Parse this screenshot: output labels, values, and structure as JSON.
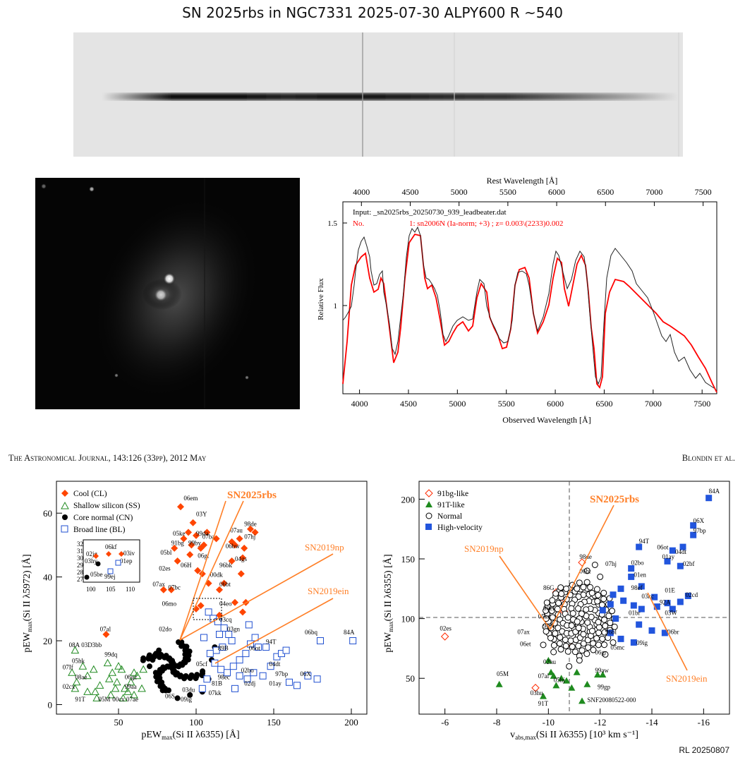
{
  "title": "SN 2025rbs in NGC7331  2025-07-30   ALPY600 R ~540",
  "journal_header": "The Astronomical Journal, 143:126 (33pp), 2012 May",
  "authors_header": "Blondin et al.",
  "credit": "RL 20250807",
  "spectrum_fit": {
    "top_axis_label": "Rest Wavelength [Å]",
    "bottom_axis_label": "Observed Wavelength [Å]",
    "y_axis_label": "Relative Flux",
    "input_line": "Input: _sn2025rbs_20250730_939_leadbeater.dat",
    "match_no": "No.",
    "match_line": "1: sn2006N (Ia-norm; +3) ; z= 0.003\\(2233)0.002",
    "x_ticks": [
      "4000",
      "4500",
      "5000",
      "5500",
      "6000",
      "6500",
      "7000",
      "7500"
    ],
    "y_ticks": [
      "1",
      "1.5"
    ],
    "colors": {
      "observed": "#222222",
      "template": "#ff0000"
    }
  },
  "left_plot": {
    "xlabel": "pEW",
    "xlabel_sub": "max",
    "xlabel_rest": "(Si II λ6355)  [Å]",
    "ylabel": "pEW",
    "ylabel_sub": "max",
    "ylabel_rest": "(Si II λ5972)  [Å]",
    "x_ticks": [
      "50",
      "100",
      "150",
      "200"
    ],
    "y_ticks": [
      "0",
      "20",
      "40",
      "60"
    ],
    "legend": [
      "Cool (CL)",
      "Shallow silicon (SS)",
      "Core normal (CN)",
      "Broad line (BL)"
    ],
    "inset_x_ticks": [
      "100",
      "105",
      "110"
    ],
    "inset_y_ticks": [
      "27",
      "28",
      "29",
      "30",
      "31",
      "32"
    ],
    "inset_labels": [
      "06kf",
      "02jg",
      "03iv",
      "03hy",
      "01ep",
      "05be",
      "99ej"
    ],
    "point_labels": [
      "06em",
      "03Y",
      "05ke",
      "99da",
      "91bg",
      "99by",
      "05bl",
      "06gt",
      "06H",
      "02es",
      "00dk",
      "07ax",
      "07bc",
      "06mo",
      "07au",
      "98de",
      "07hj",
      "07ba",
      "06bw",
      "04gs",
      "96bk",
      "06bt",
      "04eo",
      "03cq",
      "03gn",
      "02do",
      "07al",
      "03D3bb",
      "99dq",
      "08A",
      "07If",
      "05hk",
      "08ae",
      "02cx",
      "91T",
      "05M",
      "00cx",
      "99aa",
      "06gz",
      "07ae",
      "06S",
      "09ig",
      "03du",
      "07kk",
      "89B",
      "98ec",
      "81B",
      "02bo",
      "02dj",
      "01ay",
      "97bp",
      "06X",
      "04dt",
      "06ot",
      "94T",
      "06bq",
      "84A",
      "05cf"
    ],
    "annotations": [
      "SN2025rbs",
      "SN2019np",
      "SN2019ein"
    ],
    "colors": {
      "cool": "#ff4500",
      "ss": "#228b22",
      "cn": "#000000",
      "bl": "#1f4fd0",
      "annot": "#ff7f27"
    }
  },
  "right_plot": {
    "xlabel": "v",
    "xlabel_sub": "abs,max",
    "xlabel_rest": "(Si II λ6355)  [10³ km s⁻¹]",
    "ylabel": "pEW",
    "ylabel_sub": "max",
    "ylabel_rest": "(Si II λ6355)  [Å]",
    "x_ticks": [
      "-6",
      "-8",
      "-10",
      "-12",
      "-14",
      "-16"
    ],
    "y_ticks": [
      "50",
      "100",
      "150",
      "200"
    ],
    "legend": [
      "91bg-like",
      "91T-like",
      "Normal",
      "High-velocity"
    ],
    "point_labels": [
      "84A",
      "06X",
      "97bp",
      "94T",
      "06ot",
      "04dt",
      "01ay",
      "02bf",
      "98de",
      "06bt",
      "07hj",
      "02bo",
      "01en",
      "86G",
      "98ef",
      "01E",
      "02cd",
      "03kc",
      "92A",
      "00cf",
      "05ke",
      "90N",
      "01br",
      "03W",
      "96bl",
      "06br",
      "02es",
      "07ax",
      "06et",
      "09ig",
      "06gr",
      "05mc",
      "02hu",
      "99aw",
      "05M",
      "07al",
      "05hj",
      "99gp",
      "03hu",
      "91T",
      "SNF20080522-000"
    ],
    "annotations": [
      "SN2025rbs",
      "SN2019np",
      "SN2019ein"
    ],
    "colors": {
      "bg": "#ff2a00",
      "t": "#1f8b1f",
      "normal": "#000000",
      "hv": "#2255dd",
      "annot": "#ff7f27"
    }
  }
}
